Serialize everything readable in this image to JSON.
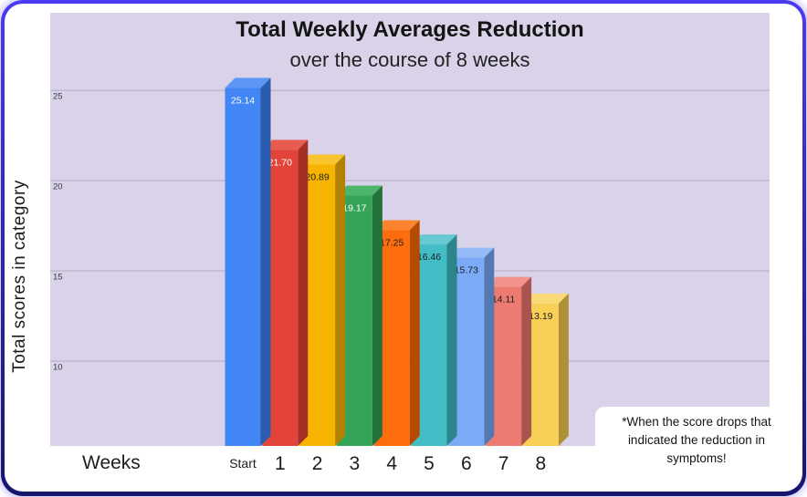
{
  "chart_data": {
    "type": "bar",
    "title": "Total Weekly Averages Reduction",
    "subtitle": "over the course of 8 weeks",
    "xlabel": "Weeks",
    "ylabel": "Total scores in category",
    "categories": [
      "Start",
      "1",
      "2",
      "3",
      "4",
      "5",
      "6",
      "7",
      "8"
    ],
    "values": [
      25.14,
      21.7,
      20.89,
      19.17,
      17.25,
      16.46,
      15.73,
      14.11,
      13.19
    ],
    "value_labels": [
      "25.14",
      "21.70",
      "20.89",
      "19.17",
      "17.25",
      "16.46",
      "15.73",
      "14.11",
      "13.19"
    ],
    "bar_front_colors": [
      "#4285f4",
      "#e2443a",
      "#f6b400",
      "#35a457",
      "#fd6d0d",
      "#42bcc5",
      "#7baaf7",
      "#ee7b72",
      "#f8cf57"
    ],
    "bar_side_colors": [
      "#2c5cad",
      "#a52f27",
      "#b28101",
      "#23723c",
      "#b54b03",
      "#2d858c",
      "#5478b0",
      "#aa544e",
      "#ae9136"
    ],
    "bar_top_colors": [
      "#5d97f6",
      "#e85c50",
      "#f8c52e",
      "#4cb56a",
      "#fd832f",
      "#65c9d1",
      "#94bbf8",
      "#f2928a",
      "#fada78"
    ],
    "value_label_colors": [
      "#ffffff",
      "#ffffff",
      "#1d1d1d",
      "#ffffff",
      "#1d1d1d",
      "#1d1d1d",
      "#1d1d1d",
      "#1d1d1d",
      "#1d1d1d"
    ],
    "yticks": [
      "25",
      "20",
      "15",
      "10"
    ],
    "ylim": [
      5.3,
      29.3
    ],
    "grid": true,
    "legend": "none",
    "plot_bg_color": "#d9d2e9",
    "gridline_color": "#b3acc3"
  },
  "note": {
    "lines": [
      "*When the score drops that",
      "indicated the reduction in",
      "symptoms!"
    ]
  }
}
